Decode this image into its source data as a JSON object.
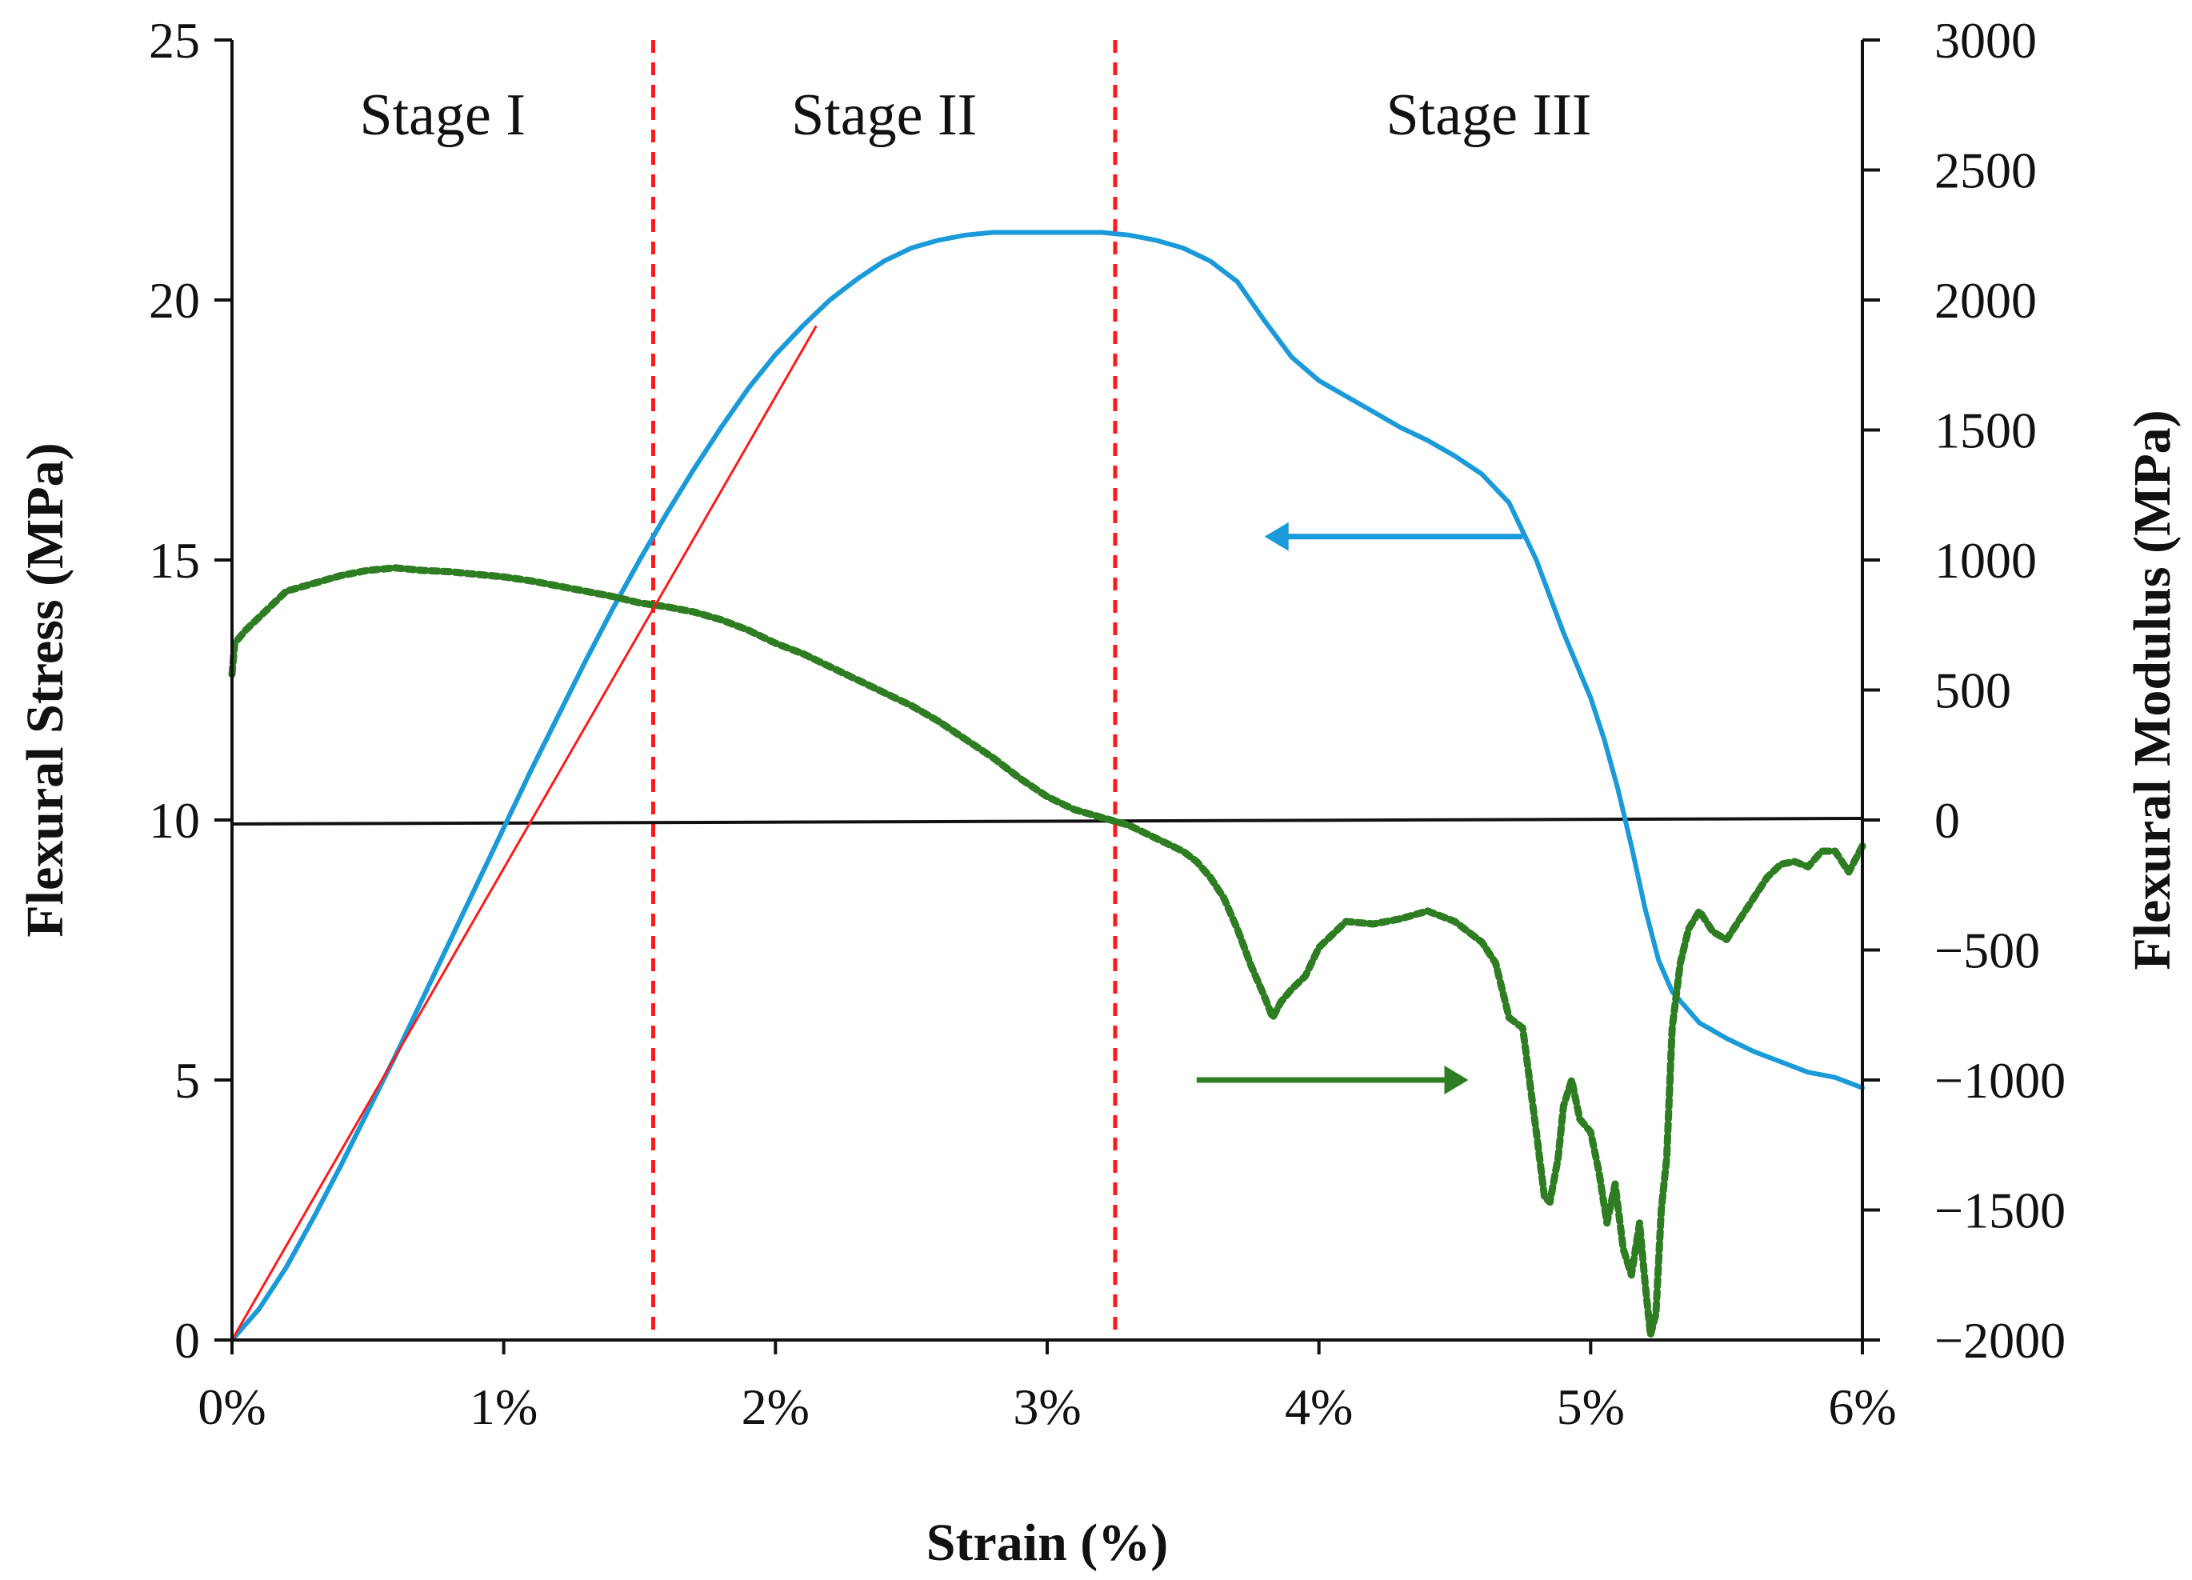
{
  "chart_data": {
    "type": "line",
    "title": "",
    "xlabel": "Strain (%)",
    "ylabel": "Flexural Stress (MPa)",
    "y2label": "Flexural Modulus (MPa)",
    "xlim": [
      0,
      6
    ],
    "ylim": [
      0,
      25
    ],
    "y2lim": [
      -2000,
      3000
    ],
    "x_ticks": [
      {
        "value": 0,
        "label": "0%"
      },
      {
        "value": 1,
        "label": "1%"
      },
      {
        "value": 2,
        "label": "2%"
      },
      {
        "value": 3,
        "label": "3%"
      },
      {
        "value": 4,
        "label": "4%"
      },
      {
        "value": 5,
        "label": "5%"
      },
      {
        "value": 6,
        "label": "6%"
      }
    ],
    "y_ticks": [
      {
        "value": 0,
        "label": "0"
      },
      {
        "value": 5,
        "label": "5"
      },
      {
        "value": 10,
        "label": "10"
      },
      {
        "value": 15,
        "label": "15"
      },
      {
        "value": 20,
        "label": "20"
      },
      {
        "value": 25,
        "label": "25"
      }
    ],
    "y2_ticks": [
      {
        "value": -2000,
        "label": "−2000"
      },
      {
        "value": -1500,
        "label": "−1500"
      },
      {
        "value": -1000,
        "label": "−1000"
      },
      {
        "value": -500,
        "label": "−500"
      },
      {
        "value": 0,
        "label": "0"
      },
      {
        "value": 500,
        "label": "500"
      },
      {
        "value": 1000,
        "label": "1000"
      },
      {
        "value": 1500,
        "label": "1500"
      },
      {
        "value": 2000,
        "label": "2000"
      },
      {
        "value": 2500,
        "label": "2500"
      },
      {
        "value": 3000,
        "label": "3000"
      }
    ],
    "stages": [
      {
        "label": "Stage I",
        "x_start": 0,
        "x_end": 1.55
      },
      {
        "label": "Stage II",
        "x_start": 1.55,
        "x_end": 3.25
      },
      {
        "label": "Stage III",
        "x_start": 3.25,
        "x_end": 6
      }
    ],
    "stage_boundaries": [
      1.55,
      3.25
    ],
    "series": [
      {
        "name": "Flexural Stress",
        "axis": "left",
        "style": "solid",
        "color": "#1a9ad9",
        "x": [
          0.0,
          0.1,
          0.2,
          0.3,
          0.4,
          0.5,
          0.6,
          0.7,
          0.8,
          0.9,
          1.0,
          1.1,
          1.2,
          1.3,
          1.4,
          1.5,
          1.6,
          1.7,
          1.8,
          1.9,
          2.0,
          2.1,
          2.2,
          2.3,
          2.4,
          2.5,
          2.6,
          2.7,
          2.8,
          2.9,
          3.0,
          3.1,
          3.2,
          3.3,
          3.4,
          3.5,
          3.6,
          3.7,
          3.8,
          3.9,
          4.0,
          4.1,
          4.2,
          4.3,
          4.4,
          4.5,
          4.6,
          4.7,
          4.8,
          4.9,
          5.0,
          5.05,
          5.1,
          5.15,
          5.2,
          5.25,
          5.3,
          5.35,
          5.4,
          5.5,
          5.6,
          5.7,
          5.8,
          5.9,
          6.0
        ],
        "y": [
          0.0,
          0.6,
          1.4,
          2.35,
          3.35,
          4.4,
          5.45,
          6.55,
          7.65,
          8.75,
          9.85,
          10.95,
          12.0,
          13.05,
          14.05,
          15.0,
          15.9,
          16.75,
          17.55,
          18.3,
          18.95,
          19.5,
          20.0,
          20.4,
          20.75,
          21.0,
          21.15,
          21.25,
          21.3,
          21.3,
          21.3,
          21.3,
          21.3,
          21.25,
          21.15,
          21.0,
          20.75,
          20.35,
          19.6,
          18.9,
          18.45,
          18.15,
          17.85,
          17.55,
          17.3,
          17.0,
          16.65,
          16.1,
          15.0,
          13.6,
          12.35,
          11.55,
          10.6,
          9.5,
          8.3,
          7.3,
          6.7,
          6.4,
          6.1,
          5.8,
          5.55,
          5.35,
          5.15,
          5.05,
          4.85
        ]
      },
      {
        "name": "Flexural Modulus",
        "axis": "right",
        "style": "dotted",
        "color": "#2e7d22",
        "x": [
          0.0,
          0.01,
          0.05,
          0.1,
          0.15,
          0.2,
          0.3,
          0.4,
          0.5,
          0.6,
          0.7,
          0.8,
          0.9,
          1.0,
          1.1,
          1.2,
          1.3,
          1.4,
          1.5,
          1.6,
          1.7,
          1.8,
          1.9,
          2.0,
          2.1,
          2.2,
          2.3,
          2.4,
          2.5,
          2.6,
          2.7,
          2.8,
          2.9,
          3.0,
          3.1,
          3.2,
          3.3,
          3.4,
          3.5,
          3.55,
          3.6,
          3.65,
          3.7,
          3.75,
          3.8,
          3.83,
          3.86,
          3.9,
          3.95,
          4.0,
          4.1,
          4.2,
          4.3,
          4.4,
          4.5,
          4.6,
          4.65,
          4.7,
          4.75,
          4.8,
          4.83,
          4.85,
          4.88,
          4.9,
          4.93,
          4.96,
          5.0,
          5.03,
          5.06,
          5.09,
          5.12,
          5.15,
          5.18,
          5.2,
          5.22,
          5.24,
          5.26,
          5.28,
          5.3,
          5.33,
          5.36,
          5.4,
          5.45,
          5.5,
          5.55,
          5.6,
          5.65,
          5.7,
          5.75,
          5.8,
          5.85,
          5.9,
          5.95,
          6.0
        ],
        "y": [
          560,
          680,
          730,
          780,
          830,
          880,
          910,
          940,
          960,
          970,
          960,
          955,
          945,
          935,
          920,
          900,
          880,
          860,
          835,
          820,
          800,
          770,
          730,
          680,
          640,
          590,
          540,
          490,
          440,
          380,
          310,
          240,
          160,
          90,
          40,
          10,
          -20,
          -70,
          -120,
          -160,
          -220,
          -300,
          -420,
          -560,
          -680,
          -760,
          -700,
          -650,
          -600,
          -490,
          -390,
          -400,
          -380,
          -350,
          -390,
          -470,
          -550,
          -760,
          -800,
          -1200,
          -1450,
          -1470,
          -1300,
          -1100,
          -1000,
          -1150,
          -1200,
          -1350,
          -1550,
          -1400,
          -1650,
          -1750,
          -1550,
          -1780,
          -1980,
          -1900,
          -1500,
          -1300,
          -800,
          -550,
          -420,
          -350,
          -430,
          -460,
          -380,
          -300,
          -220,
          -170,
          -160,
          -180,
          -120,
          -120,
          -200,
          -100
        ]
      }
    ],
    "annotations": [
      {
        "type": "tangent_line",
        "color": "#ff1a1a",
        "x": [
          0.0,
          2.15
        ],
        "y": [
          0.0,
          19.5
        ],
        "axis": "left"
      },
      {
        "type": "zero_line",
        "color": "#111111",
        "axis": "right",
        "value": 0
      },
      {
        "type": "arrow",
        "series": "Flexural Stress",
        "direction": "left",
        "color": "#1a9ad9",
        "from": [
          4.75,
          15.45
        ],
        "to": [
          3.8,
          15.45
        ],
        "axis": "left"
      },
      {
        "type": "arrow",
        "series": "Flexural Modulus",
        "direction": "right",
        "color": "#2e7d22",
        "from": [
          3.55,
          5.0
        ],
        "to": [
          4.55,
          5.0
        ],
        "axis": "left"
      }
    ]
  }
}
